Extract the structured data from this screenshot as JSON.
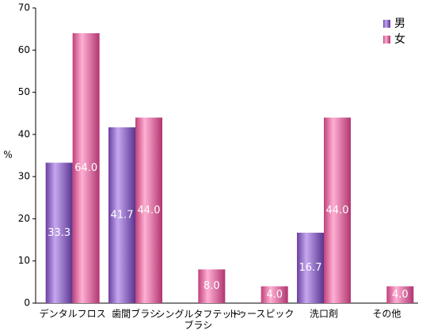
{
  "chart_data": {
    "type": "bar",
    "y_label": "%",
    "categories": [
      "デンタルフロス",
      "歯間ブラシ",
      "シングルタフテッド\nブラシ",
      "トゥースピック",
      "洗口剤",
      "その他"
    ],
    "series": [
      {
        "name": "男",
        "color": "#9966cc",
        "values": [
          33.3,
          41.7,
          null,
          null,
          16.7,
          null
        ],
        "value_labels": [
          "33.3",
          "41.7",
          null,
          null,
          "16.7",
          null
        ]
      },
      {
        "name": "女",
        "color": "#ff88bb",
        "values": [
          64,
          44,
          8,
          4,
          44,
          4
        ],
        "value_labels": [
          "64.0",
          "44.0",
          "8.0",
          "4.0",
          "44.0",
          "4.0"
        ]
      }
    ],
    "ylim": [
      0,
      70
    ],
    "yticks": [
      0,
      10,
      20,
      30,
      40,
      50,
      60,
      70
    ],
    "legend": "top-right"
  }
}
